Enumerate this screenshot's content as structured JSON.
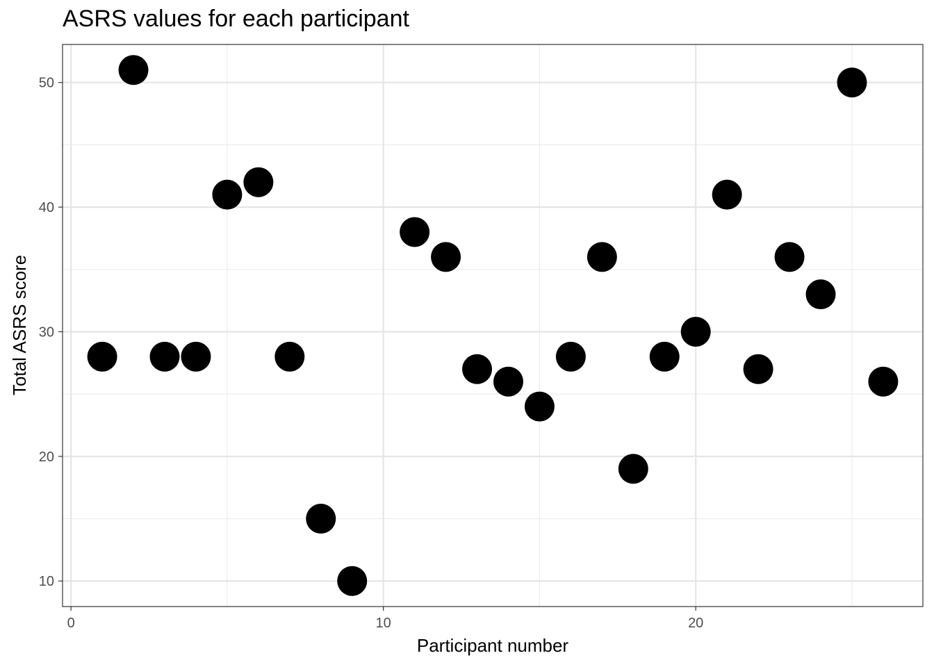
{
  "chart_data": {
    "type": "scatter",
    "title": "ASRS values for each participant",
    "xlabel": "Participant number",
    "ylabel": "Total ASRS score",
    "xlim": [
      -0.27,
      27.27
    ],
    "ylim": [
      7.95,
      53.05
    ],
    "x_ticks": [
      0,
      10,
      20
    ],
    "y_ticks": [
      10,
      20,
      30,
      40,
      50
    ],
    "x_minor_ticks": [
      5,
      15,
      25
    ],
    "y_minor_ticks": [
      15,
      25,
      35,
      45
    ],
    "grid": true,
    "legend": "none",
    "point_color": "#000000",
    "points": [
      {
        "x": 1,
        "y": 28
      },
      {
        "x": 2,
        "y": 51
      },
      {
        "x": 3,
        "y": 28
      },
      {
        "x": 4,
        "y": 28
      },
      {
        "x": 5,
        "y": 41
      },
      {
        "x": 6,
        "y": 42
      },
      {
        "x": 7,
        "y": 28
      },
      {
        "x": 8,
        "y": 15
      },
      {
        "x": 9,
        "y": 10
      },
      {
        "x": 11,
        "y": 38
      },
      {
        "x": 12,
        "y": 36
      },
      {
        "x": 13,
        "y": 27
      },
      {
        "x": 14,
        "y": 26
      },
      {
        "x": 15,
        "y": 24
      },
      {
        "x": 16,
        "y": 28
      },
      {
        "x": 17,
        "y": 36
      },
      {
        "x": 18,
        "y": 19
      },
      {
        "x": 19,
        "y": 28
      },
      {
        "x": 20,
        "y": 30
      },
      {
        "x": 21,
        "y": 41
      },
      {
        "x": 22,
        "y": 27
      },
      {
        "x": 23,
        "y": 36
      },
      {
        "x": 24,
        "y": 33
      },
      {
        "x": 25,
        "y": 50
      },
      {
        "x": 26,
        "y": 26
      }
    ]
  }
}
